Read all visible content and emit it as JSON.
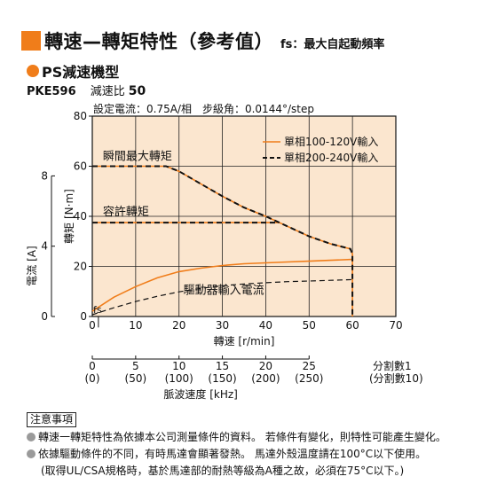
{
  "header": {
    "title": "轉速—轉矩特性（參考值）",
    "subtitle": "fs：最大自起動頻率"
  },
  "series_head": {
    "name": "PS減速機型"
  },
  "model": {
    "name": "PKE596",
    "ratio_label": "減速比",
    "ratio_value": "50"
  },
  "settings_text": "設定電流：0.75A/相　步級角：0.0144°/step",
  "chart_data": {
    "type": "line",
    "xlabel": "轉速 [r/min]",
    "ylabel": "轉矩 [N·m]",
    "ylabel2": "電流 [A]",
    "xlim": [
      0,
      70
    ],
    "ylim": [
      0,
      80
    ],
    "y2lim": [
      0,
      11.4
    ],
    "x_ticks": [
      0,
      10,
      20,
      30,
      40,
      50,
      60,
      70
    ],
    "y_ticks": [
      0,
      20,
      40,
      60,
      80
    ],
    "y2_ticks": [
      0,
      4,
      8
    ],
    "grid": true,
    "plot_bg": "#fbe6cf",
    "colors": {
      "orange": "#f07d1a",
      "dashed": "#111111",
      "black": "#111111"
    },
    "legend": {
      "position": "top-right",
      "entries": [
        "單相100-120V輸入",
        "單相200-240V輸入"
      ]
    },
    "series": [
      {
        "name": "單相100-120V輸入",
        "style": "solid-orange",
        "x": [
          0,
          17,
          20,
          25,
          30,
          35,
          40,
          45,
          50,
          55,
          59.5,
          60,
          60
        ],
        "y": [
          60,
          60,
          58,
          53,
          48,
          43.5,
          40,
          36,
          32,
          29,
          27,
          25,
          0
        ]
      },
      {
        "name": "單相200-240V輸入",
        "style": "dashed-black",
        "x": [
          0,
          17,
          20,
          25,
          30,
          35,
          40,
          45,
          50,
          55,
          59.5,
          60,
          60
        ],
        "y": [
          60,
          60,
          58,
          53,
          48,
          43.5,
          40,
          36,
          32,
          29,
          27,
          25,
          0
        ]
      },
      {
        "name": "pullout_hold",
        "style": "solid-orange",
        "x": [
          0,
          43
        ],
        "y": [
          37.5,
          37.5
        ]
      },
      {
        "name": "pullout_hold_dashed",
        "style": "dashed-black",
        "x": [
          0,
          43
        ],
        "y": [
          37.5,
          37.5
        ]
      },
      {
        "name": "current_100V",
        "style": "solid-orange",
        "axis": "y2",
        "x": [
          0,
          5,
          10,
          15,
          20,
          25,
          30,
          35,
          40,
          45,
          50,
          55,
          60
        ],
        "y": [
          0.3,
          1.1,
          1.7,
          2.2,
          2.55,
          2.75,
          2.9,
          3.0,
          3.05,
          3.1,
          3.15,
          3.2,
          3.25
        ]
      },
      {
        "name": "current_200V",
        "style": "dashed-black",
        "axis": "y2",
        "x": [
          0,
          5,
          10,
          15,
          20,
          25,
          30,
          35,
          40,
          45,
          50,
          55,
          60
        ],
        "y": [
          0.1,
          0.5,
          0.85,
          1.15,
          1.4,
          1.6,
          1.75,
          1.85,
          1.92,
          1.98,
          2.02,
          2.06,
          2.1
        ]
      }
    ],
    "annotations": [
      {
        "text": "瞬間最大轉矩",
        "x": 1,
        "y": 60
      },
      {
        "text": "容許轉矩",
        "x": 1,
        "y": 37.5
      },
      {
        "text": "驅動器輸入電流",
        "x": 21,
        "y": 4
      },
      {
        "text": "fs",
        "x": 0,
        "y": 2
      }
    ],
    "pulse_axis": {
      "label": "脈波速度 [kHz]",
      "values": [
        "0",
        "5",
        "10",
        "15",
        "20",
        "25"
      ],
      "values_div10": [
        "(0)",
        "(50)",
        "(100)",
        "(150)",
        "(200)",
        "(250)"
      ],
      "speed_positions": [
        0,
        10,
        20,
        30,
        40,
        50
      ],
      "legend_top": "分割數1",
      "legend_bottom": "(分割數10)"
    }
  },
  "notes": {
    "title": "注意事項",
    "items": [
      "轉速一轉矩特性為依據本公司測量條件的資料。 若條件有變化，則特性可能產生變化。",
      "依據驅動條件的不同，有時馬達會顯著發熱。 馬達外殼溫度請在100°C以下使用。",
      "(取得UL/CSA規格時，基於馬達部的耐熱等級為A種之故，必須在75°C以下。)"
    ]
  }
}
